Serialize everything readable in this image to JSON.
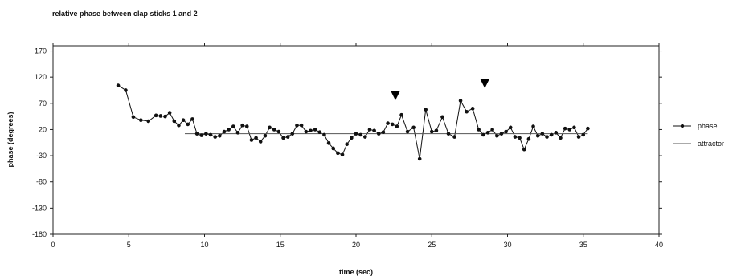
{
  "chart_data": {
    "type": "line",
    "title": "relative phase between clap sticks 1 and 2",
    "xlabel": "time (sec)",
    "ylabel": "phase (degrees)",
    "xlim": [
      0,
      40
    ],
    "ylim": [
      -180,
      180
    ],
    "x_ticks": [
      0,
      5,
      10,
      15,
      20,
      25,
      30,
      35,
      40
    ],
    "y_ticks": [
      170,
      120,
      70,
      20,
      -30,
      -80,
      -130,
      -180
    ],
    "grid": false,
    "legend_position": "right",
    "colors": {
      "phase": "#111111",
      "attractor": "#555555",
      "axis": "#222222"
    },
    "markers": [
      {
        "type": "down-triangle",
        "x": 22.6,
        "y": 85
      },
      {
        "type": "down-triangle",
        "x": 28.5,
        "y": 108
      }
    ],
    "series": [
      {
        "name": "phase",
        "style": "line+markers",
        "x": [
          4.3,
          4.8,
          5.3,
          5.8,
          6.3,
          6.8,
          7.1,
          7.4,
          7.7,
          8.0,
          8.3,
          8.6,
          8.9,
          9.2,
          9.5,
          9.8,
          10.1,
          10.4,
          10.7,
          11.0,
          11.3,
          11.6,
          11.9,
          12.2,
          12.5,
          12.8,
          13.1,
          13.4,
          13.7,
          14.0,
          14.3,
          14.6,
          14.9,
          15.2,
          15.5,
          15.8,
          16.1,
          16.4,
          16.7,
          17.0,
          17.3,
          17.6,
          17.9,
          18.2,
          18.5,
          18.8,
          19.1,
          19.4,
          19.7,
          20.0,
          20.3,
          20.6,
          20.9,
          21.2,
          21.5,
          21.8,
          22.1,
          22.4,
          22.7,
          23.0,
          23.4,
          23.8,
          24.2,
          24.6,
          25.0,
          25.3,
          25.7,
          26.1,
          26.5,
          26.9,
          27.3,
          27.7,
          28.1,
          28.4,
          28.7,
          29.0,
          29.3,
          29.6,
          29.9,
          30.2,
          30.5,
          30.8,
          31.1,
          31.4,
          31.7,
          32.0,
          32.3,
          32.6,
          32.9,
          33.2,
          33.5,
          33.8,
          34.1,
          34.4,
          34.7,
          35.0,
          35.3
        ],
        "y": [
          104,
          95,
          44,
          38,
          36,
          47,
          46,
          45,
          52,
          36,
          28,
          38,
          30,
          40,
          12,
          9,
          12,
          10,
          6,
          8,
          16,
          20,
          26,
          14,
          28,
          26,
          0,
          4,
          -3,
          8,
          24,
          20,
          16,
          4,
          6,
          12,
          28,
          28,
          16,
          18,
          20,
          15,
          10,
          -6,
          -16,
          -25,
          -28,
          -8,
          4,
          12,
          10,
          6,
          20,
          18,
          12,
          15,
          32,
          30,
          26,
          48,
          16,
          24,
          -36,
          58,
          16,
          18,
          44,
          12,
          6,
          75,
          54,
          60,
          20,
          10,
          14,
          20,
          8,
          12,
          16,
          24,
          6,
          4,
          -18,
          2,
          26,
          8,
          12,
          6,
          10,
          14,
          4,
          22,
          20,
          24,
          6,
          10,
          22
        ]
      },
      {
        "name": "attractor",
        "style": "line",
        "x": [
          8.7,
          35.3
        ],
        "y": [
          12,
          12
        ]
      },
      {
        "name": "",
        "style": "line",
        "x": [
          0,
          40
        ],
        "y": [
          0,
          0
        ]
      }
    ],
    "legend": [
      {
        "label": "phase",
        "style": "line+markers"
      },
      {
        "label": "attractor",
        "style": "line"
      }
    ]
  }
}
